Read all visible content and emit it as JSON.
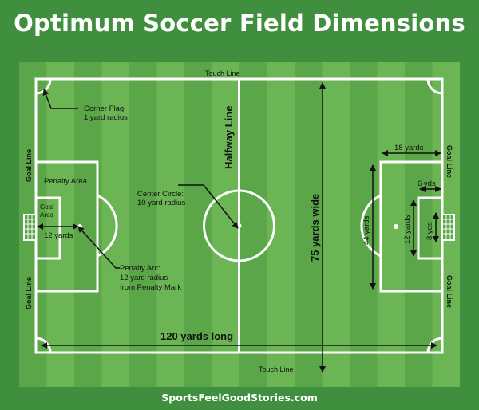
{
  "title": "Optimum Soccer Field Dimensions",
  "footer": "SportsFeelGoodStories.com",
  "colors": {
    "background": "#3f8f3f",
    "stripe_dark": "#5aa648",
    "stripe_light": "#6cb555",
    "lines": "#ffffff",
    "text": "#111111",
    "title": "#ffffff"
  },
  "labels": {
    "touch_line_top": "Touch Line",
    "touch_line_bottom": "Touch Line",
    "corner_flag_1": "Corner Flag:",
    "corner_flag_2": "1 yard radius",
    "halfway_line": "Halfway Line",
    "goal_line_left_top": "Goal Line",
    "goal_line_left_bottom": "Goal Line",
    "goal_line_right_top": "Goal Line",
    "goal_line_right_bottom": "Goal Line",
    "penalty_area": "Penalty Area",
    "goal_area_1": "Goal",
    "goal_area_2": "Area",
    "twelve_yards_left": "12 yards",
    "center_circle_1": "Center Circle:",
    "center_circle_2": "10 yard radius",
    "penalty_arc_1": "Penalty Arc:",
    "penalty_arc_2": "12 yard radius",
    "penalty_arc_3": "from Penalty Mark",
    "width": "75 yards wide",
    "length": "120 yards long",
    "eighteen_yards": "18 yards",
    "six_yds": "6 yds",
    "forty_four_yards": "44 yards",
    "twelve_yards_right": "12 yards",
    "eight_yds": "8 yds"
  }
}
